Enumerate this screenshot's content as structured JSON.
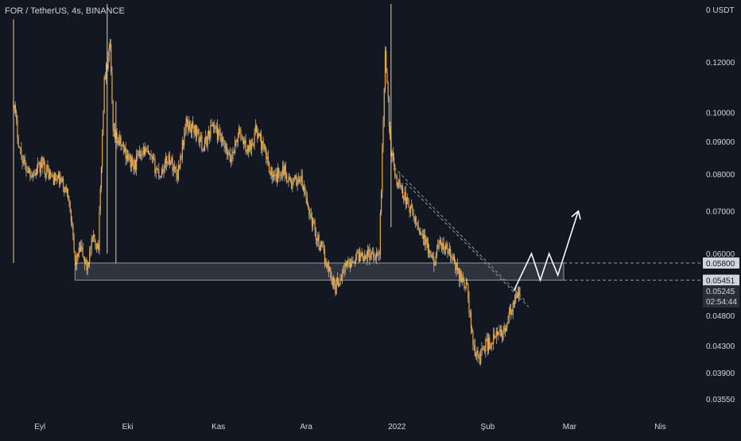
{
  "header": {
    "symbol_title": "FOR / TetherUS, 4s, BINANCE",
    "currency": "0 USDT"
  },
  "colors": {
    "background": "#131722",
    "candle": "#f0a93c",
    "wick": "#fbe3b8",
    "axis_text": "#d1d4dc",
    "zone_fill": "#3a3d47",
    "zone_border": "#9598a1",
    "projection": "#ffffff",
    "label_bg": "#d1d4dc",
    "label_text": "#131722"
  },
  "chart_data": {
    "type": "line",
    "title": "FOR / TetherUS, 4s, BINANCE",
    "xlabel": "",
    "ylabel": "",
    "y_scale": "log",
    "ylim": [
      0.0335,
      0.148
    ],
    "x_range": [
      "2021-08-20",
      "2022-04-15"
    ],
    "x_ticks": [
      {
        "date": "2021-09-01",
        "label": "Eyl"
      },
      {
        "date": "2021-10-01",
        "label": "Eki"
      },
      {
        "date": "2021-11-01",
        "label": "Kas"
      },
      {
        "date": "2021-12-01",
        "label": "Ara"
      },
      {
        "date": "2022-01-01",
        "label": "2022"
      },
      {
        "date": "2022-02-01",
        "label": "Şub"
      },
      {
        "date": "2022-03-01",
        "label": "Mar"
      },
      {
        "date": "2022-04-01",
        "label": "Nis"
      }
    ],
    "y_ticks": [
      0.12,
      0.1,
      0.09,
      0.08,
      0.07,
      0.06,
      0.048,
      0.043,
      0.039,
      0.0355
    ],
    "y_tick_labels": [
      "0.12000",
      "0.10000",
      "0.09000",
      "0.08000",
      "0.07000",
      "0.06000",
      "0.04800",
      "0.04300",
      "0.03900",
      "0.03550"
    ],
    "price_labels": {
      "zone_top": "0.05800",
      "zone_bottom": "0.05451",
      "last_price": "0.05245",
      "countdown": "02:54:44"
    },
    "series": [
      {
        "x": [
          "2021-08-23",
          "2021-08-25",
          "2021-08-27",
          "2021-08-30",
          "2021-09-02",
          "2021-09-05",
          "2021-09-08",
          "2021-09-11",
          "2021-09-13",
          "2021-09-15",
          "2021-09-17",
          "2021-09-19",
          "2021-09-21",
          "2021-09-23",
          "2021-09-25",
          "2021-09-26",
          "2021-09-28",
          "2021-09-30",
          "2021-10-03",
          "2021-10-06",
          "2021-10-09",
          "2021-10-12",
          "2021-10-15",
          "2021-10-18",
          "2021-10-21",
          "2021-10-24",
          "2021-10-27",
          "2021-10-30",
          "2021-11-02",
          "2021-11-05",
          "2021-11-08",
          "2021-11-11",
          "2021-11-14",
          "2021-11-17",
          "2021-11-20",
          "2021-11-23",
          "2021-11-26",
          "2021-11-29",
          "2021-12-02",
          "2021-12-05",
          "2021-12-08",
          "2021-12-11",
          "2021-12-14",
          "2021-12-17",
          "2021-12-20",
          "2021-12-23",
          "2021-12-26",
          "2021-12-28",
          "2021-12-30",
          "2022-01-01",
          "2022-01-02",
          "2022-01-04",
          "2022-01-07",
          "2022-01-10",
          "2022-01-13",
          "2022-01-16",
          "2022-01-19",
          "2022-01-22",
          "2022-01-25",
          "2022-01-27",
          "2022-01-29",
          "2022-01-31",
          "2022-02-02",
          "2022-02-04",
          "2022-02-06",
          "2022-02-08",
          "2022-02-10",
          "2022-02-12"
        ],
        "y": [
          0.104,
          0.088,
          0.082,
          0.08,
          0.083,
          0.079,
          0.078,
          0.074,
          0.058,
          0.061,
          0.057,
          0.063,
          0.062,
          0.112,
          0.126,
          0.092,
          0.09,
          0.087,
          0.082,
          0.088,
          0.084,
          0.08,
          0.085,
          0.08,
          0.096,
          0.094,
          0.088,
          0.096,
          0.09,
          0.084,
          0.093,
          0.087,
          0.094,
          0.086,
          0.078,
          0.082,
          0.077,
          0.079,
          0.07,
          0.063,
          0.058,
          0.053,
          0.057,
          0.059,
          0.06,
          0.06,
          0.06,
          0.125,
          0.086,
          0.078,
          0.077,
          0.073,
          0.068,
          0.064,
          0.058,
          0.062,
          0.06,
          0.056,
          0.053,
          0.043,
          0.041,
          0.043,
          0.0435,
          0.0445,
          0.045,
          0.047,
          0.05,
          0.0525
        ]
      }
    ],
    "annotations": {
      "support_zone": {
        "start": "2021-09-13",
        "end": "2022-02-27",
        "y_low": 0.05451,
        "y_high": 0.058
      },
      "trendline_1": [
        {
          "date": "2021-12-31",
          "y": 0.082
        },
        {
          "date": "2022-02-14",
          "y": 0.0505
        }
      ],
      "trendline_2": [
        {
          "date": "2022-01-04",
          "y": 0.0775
        },
        {
          "date": "2022-02-15",
          "y": 0.0495
        }
      ],
      "projection_path": [
        {
          "date": "2022-02-10",
          "y": 0.0525
        },
        {
          "date": "2022-02-16",
          "y": 0.06
        },
        {
          "date": "2022-02-19",
          "y": 0.0545
        },
        {
          "date": "2022-02-22",
          "y": 0.06
        },
        {
          "date": "2022-02-25",
          "y": 0.0555
        },
        {
          "date": "2022-03-04",
          "y": 0.07
        }
      ]
    }
  }
}
